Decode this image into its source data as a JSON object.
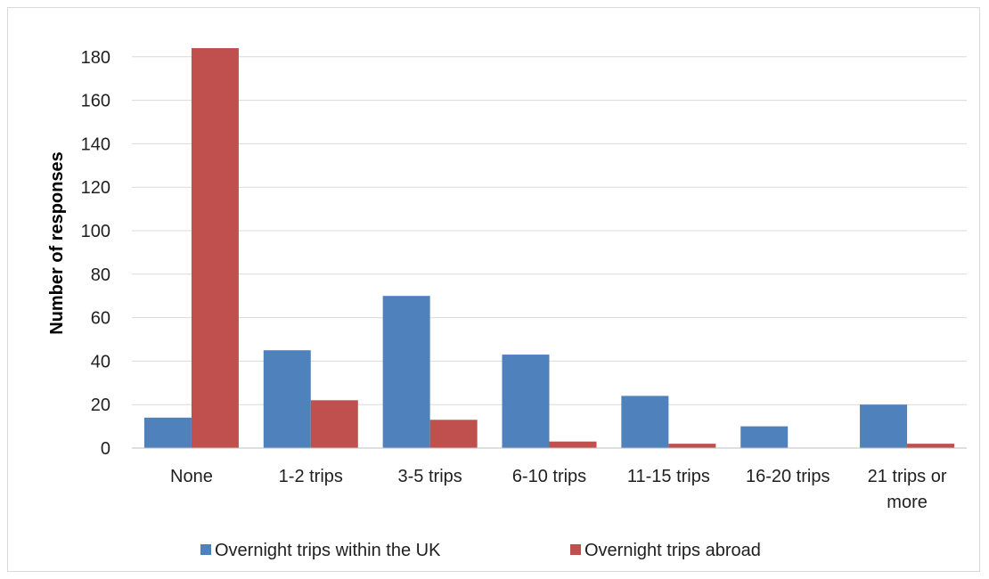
{
  "chart_data": {
    "type": "bar",
    "title": "",
    "xlabel": "",
    "ylabel": "Number of responses",
    "ylim": [
      0,
      190
    ],
    "yticks": [
      0,
      20,
      40,
      60,
      80,
      100,
      120,
      140,
      160,
      180
    ],
    "grid": true,
    "legend_position": "bottom",
    "categories": [
      [
        "None"
      ],
      [
        "1-2 trips"
      ],
      [
        "3-5 trips"
      ],
      [
        "6-10 trips"
      ],
      [
        "11-15 trips"
      ],
      [
        "16-20 trips"
      ],
      [
        "21 trips or",
        "more"
      ]
    ],
    "series": [
      {
        "name": "Overnight trips within the UK",
        "color": "#4f81bd",
        "values": [
          14,
          45,
          70,
          43,
          24,
          10,
          20
        ]
      },
      {
        "name": "Overnight trips abroad",
        "color": "#c0504d",
        "values": [
          184,
          22,
          13,
          3,
          2,
          0,
          2
        ]
      }
    ]
  }
}
